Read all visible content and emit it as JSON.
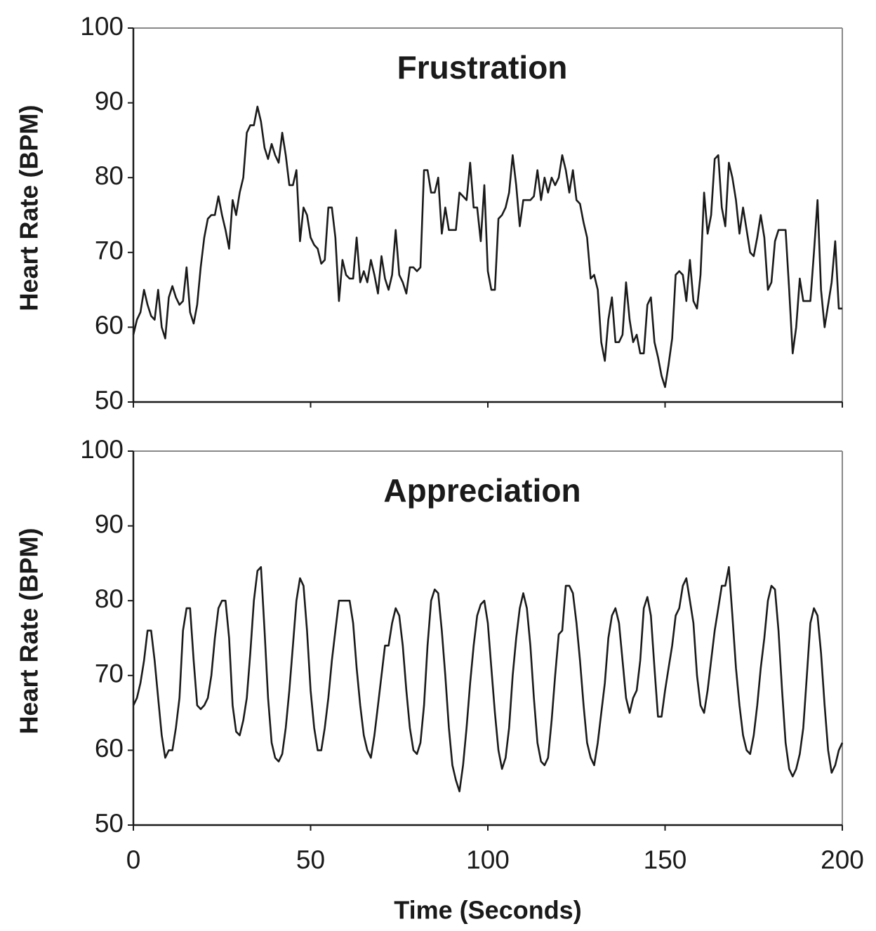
{
  "chart_data": [
    {
      "type": "line",
      "title": "Frustration",
      "ylabel": "Heart Rate (BPM)",
      "color": "#1a1a1a",
      "xlim": [
        0,
        200
      ],
      "ylim": [
        50,
        100
      ],
      "yticks": [
        50,
        60,
        70,
        80,
        90,
        100
      ],
      "x": [
        0,
        1,
        2,
        3,
        4,
        5,
        6,
        7,
        8,
        9,
        10,
        11,
        12,
        13,
        14,
        15,
        16,
        17,
        18,
        19,
        20,
        21,
        22,
        23,
        24,
        25,
        26,
        27,
        28,
        29,
        30,
        31,
        32,
        33,
        34,
        35,
        36,
        37,
        38,
        39,
        40,
        41,
        42,
        43,
        44,
        45,
        46,
        47,
        48,
        49,
        50,
        51,
        52,
        53,
        54,
        55,
        56,
        57,
        58,
        59,
        60,
        61,
        62,
        63,
        64,
        65,
        66,
        67,
        68,
        69,
        70,
        71,
        72,
        73,
        74,
        75,
        76,
        77,
        78,
        79,
        80,
        81,
        82,
        83,
        84,
        85,
        86,
        87,
        88,
        89,
        90,
        91,
        92,
        93,
        94,
        95,
        96,
        97,
        98,
        99,
        100,
        101,
        102,
        103,
        104,
        105,
        106,
        107,
        108,
        109,
        110,
        111,
        112,
        113,
        114,
        115,
        116,
        117,
        118,
        119,
        120,
        121,
        122,
        123,
        124,
        125,
        126,
        127,
        128,
        129,
        130,
        131,
        132,
        133,
        134,
        135,
        136,
        137,
        138,
        139,
        140,
        141,
        142,
        143,
        144,
        145,
        146,
        147,
        148,
        149,
        150,
        151,
        152,
        153,
        154,
        155,
        156,
        157,
        158,
        159,
        160,
        161,
        162,
        163,
        164,
        165,
        166,
        167,
        168,
        169,
        170,
        171,
        172,
        173,
        174,
        175,
        176,
        177,
        178,
        179,
        180,
        181,
        182,
        183,
        184,
        185,
        186,
        187,
        188,
        189,
        190,
        191,
        192,
        193,
        194,
        195,
        196,
        197,
        198,
        199,
        200
      ],
      "values": [
        59,
        61,
        62,
        65,
        63,
        61.5,
        61,
        65,
        60,
        58.5,
        64,
        65.5,
        64,
        63,
        63.5,
        68,
        62,
        60.5,
        63,
        68,
        72,
        74.5,
        75,
        75,
        77.5,
        75,
        73,
        70.5,
        77,
        75,
        78,
        80,
        86,
        87,
        87,
        89.5,
        87.5,
        84,
        82.5,
        84.5,
        83,
        82,
        86,
        83,
        79,
        79,
        81,
        71.5,
        76,
        75,
        72,
        71,
        70.5,
        68.5,
        69,
        76,
        76,
        72,
        63.5,
        69,
        67,
        66.5,
        66.5,
        72,
        66,
        67.5,
        66,
        69,
        67,
        64.5,
        69.5,
        66.5,
        65,
        67,
        73,
        67,
        66,
        64.5,
        68,
        68,
        67.5,
        68,
        81,
        81,
        78,
        78,
        80,
        72.5,
        76,
        73,
        73,
        73,
        78,
        77.5,
        77,
        82,
        76,
        76,
        71.5,
        79,
        67.5,
        65,
        65,
        74.5,
        75,
        76,
        78,
        83,
        79,
        73.5,
        77,
        77,
        77,
        77.5,
        81,
        77,
        80,
        78,
        80,
        79,
        80,
        83,
        81,
        78,
        81,
        77,
        76.5,
        74,
        72,
        66.5,
        67,
        65,
        58,
        55.5,
        61,
        64,
        58,
        58,
        59,
        66,
        61,
        58,
        59,
        56.5,
        56.5,
        63,
        64,
        58,
        56,
        53.5,
        52,
        55,
        58.5,
        67,
        67.5,
        67,
        63.5,
        69,
        63.5,
        62.5,
        67,
        78,
        72.5,
        75,
        82.5,
        83,
        76,
        73.5,
        82,
        80,
        77,
        72.5,
        76,
        73,
        70,
        69.5,
        72,
        75,
        72,
        65,
        66,
        71.5,
        73,
        73,
        73,
        65,
        56.5,
        60,
        66.5,
        63.5,
        63.5,
        63.5,
        70,
        77,
        65,
        60,
        63,
        66,
        71.5,
        62.5,
        62.5
      ]
    },
    {
      "type": "line",
      "title": "Appreciation",
      "ylabel": "Heart Rate (BPM)",
      "xlabel": "Time (Seconds)",
      "color": "#1a1a1a",
      "xlim": [
        0,
        200
      ],
      "ylim": [
        50,
        100
      ],
      "yticks": [
        50,
        60,
        70,
        80,
        90,
        100
      ],
      "xticks": [
        0,
        50,
        100,
        150,
        200
      ],
      "x": [
        0,
        1,
        2,
        3,
        4,
        5,
        6,
        7,
        8,
        9,
        10,
        11,
        12,
        13,
        14,
        15,
        16,
        17,
        18,
        19,
        20,
        21,
        22,
        23,
        24,
        25,
        26,
        27,
        28,
        29,
        30,
        31,
        32,
        33,
        34,
        35,
        36,
        37,
        38,
        39,
        40,
        41,
        42,
        43,
        44,
        45,
        46,
        47,
        48,
        49,
        50,
        51,
        52,
        53,
        54,
        55,
        56,
        57,
        58,
        59,
        60,
        61,
        62,
        63,
        64,
        65,
        66,
        67,
        68,
        69,
        70,
        71,
        72,
        73,
        74,
        75,
        76,
        77,
        78,
        79,
        80,
        81,
        82,
        83,
        84,
        85,
        86,
        87,
        88,
        89,
        90,
        91,
        92,
        93,
        94,
        95,
        96,
        97,
        98,
        99,
        100,
        101,
        102,
        103,
        104,
        105,
        106,
        107,
        108,
        109,
        110,
        111,
        112,
        113,
        114,
        115,
        116,
        117,
        118,
        119,
        120,
        121,
        122,
        123,
        124,
        125,
        126,
        127,
        128,
        129,
        130,
        131,
        132,
        133,
        134,
        135,
        136,
        137,
        138,
        139,
        140,
        141,
        142,
        143,
        144,
        145,
        146,
        147,
        148,
        149,
        150,
        151,
        152,
        153,
        154,
        155,
        156,
        157,
        158,
        159,
        160,
        161,
        162,
        163,
        164,
        165,
        166,
        167,
        168,
        169,
        170,
        171,
        172,
        173,
        174,
        175,
        176,
        177,
        178,
        179,
        180,
        181,
        182,
        183,
        184,
        185,
        186,
        187,
        188,
        189,
        190,
        191,
        192,
        193,
        194,
        195,
        196,
        197,
        198,
        199,
        200
      ],
      "values": [
        66,
        67,
        69,
        72,
        76,
        76,
        72,
        67,
        62,
        59,
        60,
        60,
        63,
        67,
        76,
        79,
        79,
        72,
        66,
        65.5,
        66,
        67,
        70,
        75,
        79,
        80,
        80,
        75,
        66,
        62.5,
        62,
        64,
        67,
        73,
        80,
        84,
        84.5,
        76,
        67,
        61,
        59,
        58.5,
        59.5,
        63,
        68,
        74,
        80,
        83,
        82,
        76,
        68,
        63,
        60,
        60,
        63,
        67,
        72,
        76,
        80,
        80,
        80,
        80,
        77,
        71,
        66,
        62,
        60,
        59,
        62,
        66,
        70,
        74,
        74,
        77,
        79,
        78,
        74,
        68,
        63,
        60,
        59.5,
        61,
        66,
        74,
        80,
        81.5,
        81,
        76,
        70,
        63,
        58,
        56,
        54.5,
        58,
        63,
        69,
        74,
        78,
        79.5,
        80,
        77,
        71,
        65,
        60,
        57.5,
        59,
        63,
        70,
        75,
        79,
        81,
        79,
        74,
        67,
        61,
        58.5,
        58,
        59,
        64,
        70,
        75.5,
        76,
        82,
        82,
        81,
        77,
        72,
        66,
        61,
        59,
        58,
        61,
        65,
        69,
        75,
        78,
        79,
        77,
        72,
        67,
        65,
        67,
        68,
        72,
        79,
        80.5,
        78,
        71,
        64.5,
        64.5,
        68,
        71,
        74,
        78,
        79,
        82,
        83,
        80,
        77,
        70,
        66,
        65,
        68,
        72,
        76,
        79,
        82,
        82,
        84.5,
        78,
        71,
        66,
        62,
        60,
        59.5,
        62,
        66,
        71,
        75,
        80,
        82,
        81.5,
        76,
        68,
        61,
        57.5,
        56.5,
        57.5,
        59.5,
        63,
        70,
        77,
        79,
        78,
        73,
        66,
        60,
        57,
        58,
        60,
        61
      ]
    }
  ]
}
